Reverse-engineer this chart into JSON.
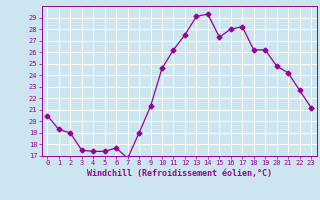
{
  "x": [
    0,
    1,
    2,
    3,
    4,
    5,
    6,
    7,
    8,
    9,
    10,
    11,
    12,
    13,
    14,
    15,
    16,
    17,
    18,
    19,
    20,
    21,
    22,
    23
  ],
  "y": [
    20.5,
    19.3,
    19.0,
    17.5,
    17.4,
    17.4,
    17.7,
    16.8,
    19.0,
    21.3,
    24.6,
    26.2,
    27.5,
    29.1,
    29.3,
    27.3,
    28.0,
    28.2,
    26.2,
    26.2,
    24.8,
    24.2,
    22.7,
    21.2
  ],
  "line_color": "#990099",
  "marker": "D",
  "marker_size": 2.5,
  "bg_color": "#cce5ee",
  "grid_color": "#ffffff",
  "xlabel": "Windchill (Refroidissement éolien,°C)",
  "xlabel_color": "#990099",
  "tick_color": "#990099",
  "ylim": [
    17,
    30
  ],
  "xlim": [
    -0.5,
    23.5
  ],
  "yticks": [
    17,
    18,
    19,
    20,
    21,
    22,
    23,
    24,
    25,
    26,
    27,
    28,
    29
  ],
  "xticks": [
    0,
    1,
    2,
    3,
    4,
    5,
    6,
    7,
    8,
    9,
    10,
    11,
    12,
    13,
    14,
    15,
    16,
    17,
    18,
    19,
    20,
    21,
    22,
    23
  ],
  "tick_fontsize": 5.0,
  "xlabel_fontsize": 6.0
}
